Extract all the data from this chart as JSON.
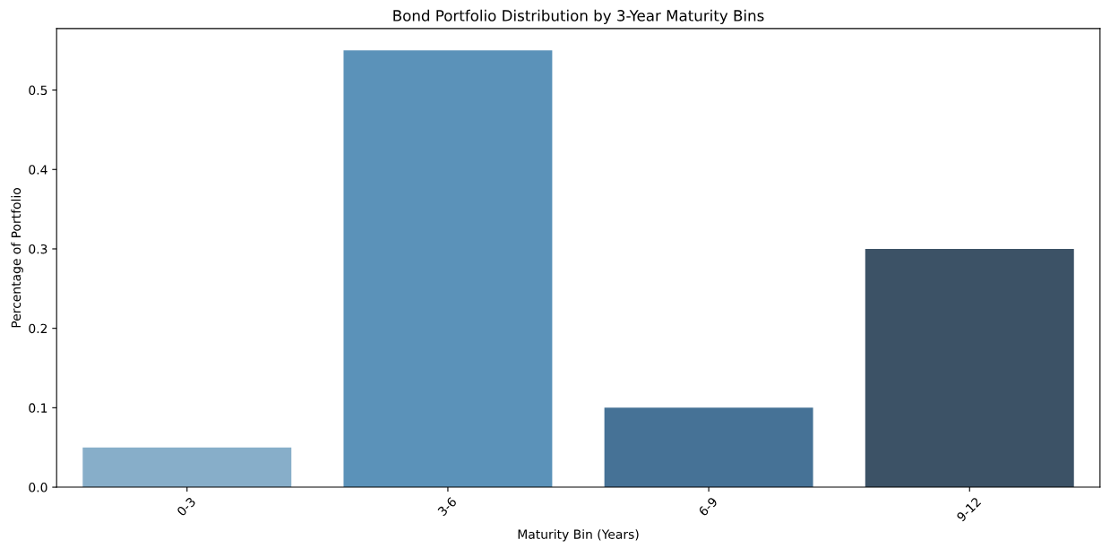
{
  "chart_data": {
    "type": "bar",
    "title": "Bond Portfolio Distribution by 3-Year Maturity Bins",
    "xlabel": "Maturity Bin (Years)",
    "ylabel": "Percentage of Portfolio",
    "categories": [
      "0-3",
      "3-6",
      "6-9",
      "9-12"
    ],
    "values": [
      0.05,
      0.55,
      0.1,
      0.3
    ],
    "colors": [
      "#87aec9",
      "#5b92b9",
      "#467296",
      "#3c5266"
    ],
    "ylim": [
      0,
      0.5775
    ],
    "yticks": [
      {
        "value": 0,
        "label": "0.0"
      },
      0.1,
      0.2,
      0.3,
      0.4,
      0.5
    ],
    "grid": false
  }
}
